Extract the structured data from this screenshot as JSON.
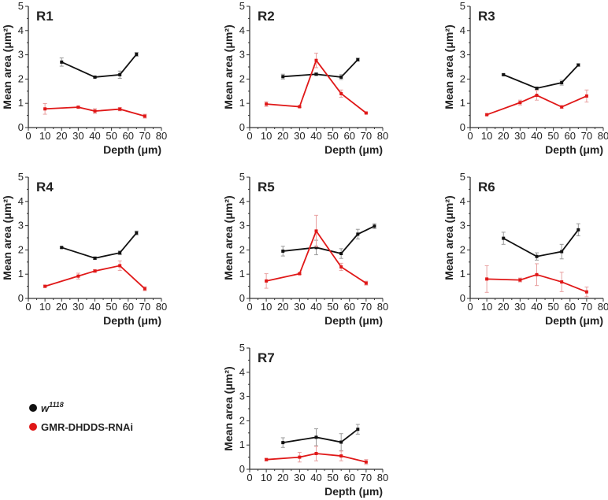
{
  "chart_data": [
    {
      "type": "line",
      "title": "R1",
      "xlabel": "Depth (μm)",
      "ylabel": "Mean area (μm²)",
      "xlim": [
        0,
        80
      ],
      "ylim": [
        0,
        5
      ],
      "xticks": [
        "0",
        "10",
        "20",
        "30",
        "40",
        "50",
        "60",
        "70",
        "80"
      ],
      "yticks": [
        "0",
        "1",
        "2",
        "3",
        "4",
        "5"
      ],
      "series": [
        {
          "name": "w1118",
          "x": [
            20,
            40,
            55,
            65
          ],
          "y": [
            2.7,
            2.08,
            2.18,
            3.02
          ],
          "err": [
            0.17,
            0.03,
            0.15,
            0.08
          ]
        },
        {
          "name": "GMR-DHDDS-RNAi",
          "x": [
            10,
            30,
            40,
            55,
            70
          ],
          "y": [
            0.77,
            0.84,
            0.68,
            0.76,
            0.47
          ],
          "err": [
            0.22,
            0.03,
            0.1,
            0.07,
            0.08
          ]
        }
      ]
    },
    {
      "type": "line",
      "title": "R2",
      "xlabel": "Depth (μm)",
      "ylabel": "Mean area (μm²)",
      "xlim": [
        0,
        80
      ],
      "ylim": [
        0,
        5
      ],
      "xticks": [
        "0",
        "10",
        "20",
        "30",
        "40",
        "50",
        "60",
        "70",
        "80"
      ],
      "yticks": [
        "0",
        "1",
        "2",
        "3",
        "4",
        "5"
      ],
      "series": [
        {
          "name": "w1118",
          "x": [
            20,
            40,
            55,
            65
          ],
          "y": [
            2.1,
            2.2,
            2.08,
            2.8
          ],
          "err": [
            0.1,
            0.05,
            0.1,
            0.06
          ]
        },
        {
          "name": "GMR-DHDDS-RNAi",
          "x": [
            10,
            30,
            40,
            55,
            70
          ],
          "y": [
            0.97,
            0.86,
            2.77,
            1.4,
            0.6
          ],
          "err": [
            0.1,
            0.03,
            0.3,
            0.15,
            0.03
          ]
        }
      ]
    },
    {
      "type": "line",
      "title": "R3",
      "xlabel": "Depth (μm)",
      "ylabel": "Mean area (μm²)",
      "xlim": [
        0,
        80
      ],
      "ylim": [
        0,
        5
      ],
      "xticks": [
        "0",
        "10",
        "20",
        "30",
        "40",
        "50",
        "60",
        "70",
        "80"
      ],
      "yticks": [
        "0",
        "1",
        "2",
        "3",
        "4",
        "5"
      ],
      "series": [
        {
          "name": "w1118",
          "x": [
            20,
            40,
            55,
            65
          ],
          "y": [
            2.18,
            1.62,
            1.85,
            2.58
          ],
          "err": [
            0.03,
            0.05,
            0.1,
            0.05
          ]
        },
        {
          "name": "GMR-DHDDS-RNAi",
          "x": [
            10,
            30,
            40,
            55,
            70
          ],
          "y": [
            0.53,
            1.03,
            1.33,
            0.85,
            1.3
          ],
          "err": [
            0.03,
            0.1,
            0.2,
            0.05,
            0.25
          ]
        }
      ]
    },
    {
      "type": "line",
      "title": "R4",
      "xlabel": "Depth (μm)",
      "ylabel": "Mean area (μm²)",
      "xlim": [
        0,
        80
      ],
      "ylim": [
        0,
        5
      ],
      "xticks": [
        "0",
        "10",
        "20",
        "30",
        "40",
        "50",
        "60",
        "70",
        "80"
      ],
      "yticks": [
        "0",
        "1",
        "2",
        "3",
        "4",
        "5"
      ],
      "series": [
        {
          "name": "w1118",
          "x": [
            20,
            40,
            55,
            65
          ],
          "y": [
            2.1,
            1.66,
            1.88,
            2.7
          ],
          "err": [
            0.03,
            0.05,
            0.08,
            0.08
          ]
        },
        {
          "name": "GMR-DHDDS-RNAi",
          "x": [
            10,
            30,
            40,
            55,
            70
          ],
          "y": [
            0.5,
            0.92,
            1.13,
            1.35,
            0.4
          ],
          "err": [
            0.05,
            0.12,
            0.05,
            0.2,
            0.08
          ]
        }
      ]
    },
    {
      "type": "line",
      "title": "R5",
      "xlabel": "Depth (μm)",
      "ylabel": "Mean area (μm²)",
      "xlim": [
        0,
        80
      ],
      "ylim": [
        0,
        5
      ],
      "xticks": [
        "0",
        "10",
        "20",
        "30",
        "40",
        "50",
        "60",
        "70",
        "80"
      ],
      "yticks": [
        "0",
        "1",
        "2",
        "3",
        "4",
        "5"
      ],
      "series": [
        {
          "name": "w1118",
          "x": [
            20,
            40,
            55,
            65,
            75
          ],
          "y": [
            1.95,
            2.1,
            1.85,
            2.65,
            2.98
          ],
          "err": [
            0.2,
            0.3,
            0.2,
            0.2,
            0.1
          ]
        },
        {
          "name": "GMR-DHDDS-RNAi",
          "x": [
            10,
            30,
            40,
            55,
            70
          ],
          "y": [
            0.72,
            1.02,
            2.78,
            1.3,
            0.63
          ],
          "err": [
            0.3,
            0.03,
            0.65,
            0.15,
            0.08
          ]
        }
      ]
    },
    {
      "type": "line",
      "title": "R6",
      "xlabel": "Depth (μm)",
      "ylabel": "Mean area (μm²)",
      "xlim": [
        0,
        80
      ],
      "ylim": [
        0,
        5
      ],
      "xticks": [
        "0",
        "10",
        "20",
        "30",
        "40",
        "50",
        "60",
        "70",
        "80"
      ],
      "yticks": [
        "0",
        "1",
        "2",
        "3",
        "4",
        "5"
      ],
      "series": [
        {
          "name": "w1118",
          "x": [
            20,
            40,
            55,
            65
          ],
          "y": [
            2.48,
            1.73,
            1.93,
            2.83
          ],
          "err": [
            0.25,
            0.15,
            0.3,
            0.25
          ]
        },
        {
          "name": "GMR-DHDDS-RNAi",
          "x": [
            10,
            30,
            40,
            55,
            70
          ],
          "y": [
            0.8,
            0.76,
            0.98,
            0.68,
            0.27
          ],
          "err": [
            0.55,
            0.08,
            0.45,
            0.4,
            0.2
          ]
        }
      ]
    },
    {
      "type": "line",
      "title": "R7",
      "xlabel": "Depth (μm)",
      "ylabel": "Mean area (μm²)",
      "xlim": [
        0,
        80
      ],
      "ylim": [
        0,
        5
      ],
      "xticks": [
        "0",
        "10",
        "20",
        "30",
        "40",
        "50",
        "60",
        "70",
        "80"
      ],
      "yticks": [
        "0",
        "1",
        "2",
        "3",
        "4",
        "5"
      ],
      "series": [
        {
          "name": "w1118",
          "x": [
            20,
            40,
            55,
            65
          ],
          "y": [
            1.1,
            1.32,
            1.12,
            1.65
          ],
          "err": [
            0.2,
            0.35,
            0.35,
            0.2
          ]
        },
        {
          "name": "GMR-DHDDS-RNAi",
          "x": [
            10,
            30,
            40,
            55,
            70
          ],
          "y": [
            0.4,
            0.5,
            0.65,
            0.55,
            0.3
          ],
          "err": [
            0.05,
            0.2,
            0.3,
            0.2,
            0.1
          ]
        }
      ]
    }
  ],
  "legend": {
    "placement": "bottom-left",
    "items": [
      {
        "label": "w",
        "superscript": "1118",
        "color": "#111111"
      },
      {
        "label": "GMR-DHDDS-RNAi",
        "color": "#e01818"
      }
    ]
  },
  "colors": {
    "w1118": "#111111",
    "rnai": "#e01818",
    "rnai_err": "#e8a0a0",
    "w_err": "#999999"
  }
}
